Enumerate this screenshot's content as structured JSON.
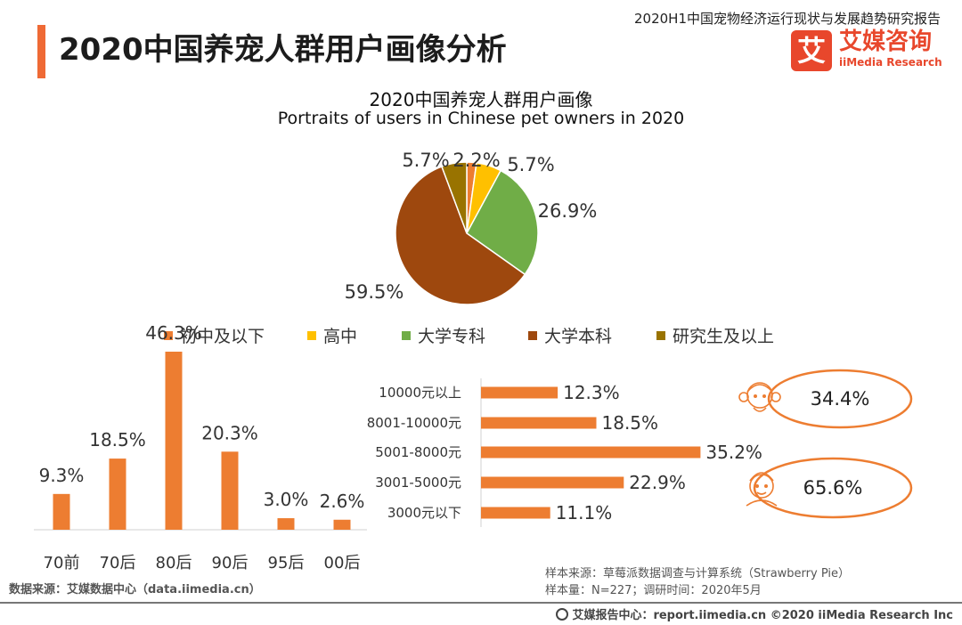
{
  "header": {
    "title": "2020中国养宠人群用户画像分析",
    "report_name": "2020H1中国宠物经济运行现状与发展趋势研究报告",
    "logo_mark": "艾",
    "logo_cn": "艾媒咨询",
    "logo_en": "iiMedia Research"
  },
  "chart_title": "2020中国养宠人群用户画像",
  "chart_subtitle": "Portraits of users in Chinese pet owners in 2020",
  "colors": {
    "accent": "#ef6a35",
    "bar": "#ed7d31",
    "education": [
      "#ed7d31",
      "#ffc000",
      "#70ad47",
      "#9e480e",
      "#997300"
    ]
  },
  "chart_data": [
    {
      "type": "pie",
      "categories": [
        "初中及以下",
        "高中",
        "大学专科",
        "大学本科",
        "研究生及以上"
      ],
      "values": [
        2.2,
        5.7,
        26.9,
        59.5,
        5.7
      ],
      "labels": [
        "2.2%",
        "5.7%",
        "26.9%",
        "59.5%",
        "5.7%"
      ],
      "legend": "bottom"
    },
    {
      "type": "bar",
      "categories": [
        "70前",
        "70后",
        "80后",
        "90后",
        "95后",
        "00后"
      ],
      "values": [
        9.3,
        18.5,
        46.3,
        20.3,
        3.0,
        2.6
      ],
      "labels": [
        "9.3%",
        "18.5%",
        "46.3%",
        "20.3%",
        "3.0%",
        "2.6%"
      ],
      "ylim": [
        0,
        50
      ]
    },
    {
      "type": "bar",
      "orientation": "horizontal",
      "categories": [
        "10000元以上",
        "8001-10000元",
        "5001-8000元",
        "3001-5000元",
        "3000元以下"
      ],
      "values": [
        12.3,
        18.5,
        35.2,
        22.9,
        11.1
      ],
      "labels": [
        "12.3%",
        "18.5%",
        "35.2%",
        "22.9%",
        "11.1%"
      ],
      "xlim": [
        0,
        40
      ]
    },
    {
      "type": "gender",
      "categories": [
        "female",
        "male"
      ],
      "values": [
        34.4,
        65.6
      ],
      "labels": [
        "34.4%",
        "65.6%"
      ]
    }
  ],
  "footer": {
    "source_left": "数据来源：艾媒数据中心（data.iimedia.cn）",
    "sample_source": "样本来源：草莓派数据调查与计算系统（Strawberry Pie）",
    "sample_size": "样本量：N=227；调研时间：2020年5月",
    "copyright": "艾媒报告中心：report.iimedia.cn  ©2020  iiMedia Research  Inc"
  }
}
